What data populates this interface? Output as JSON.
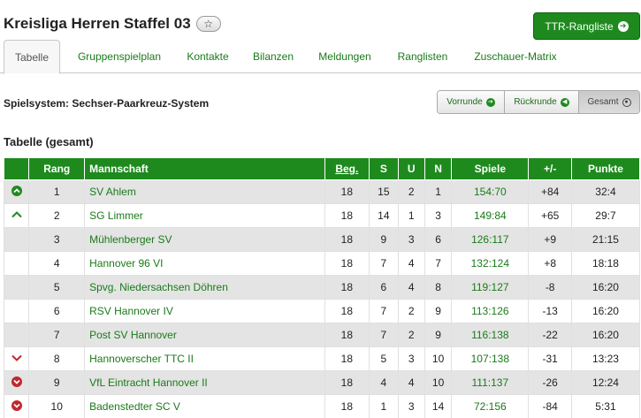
{
  "header": {
    "title": "Kreisliga Herren Staffel 03",
    "star_glyph": "☆",
    "ttr_button_label": "TTR-Rangliste"
  },
  "tabs": [
    {
      "label": "Tabelle",
      "active": true
    },
    {
      "label": "Gruppenspielplan",
      "active": false
    },
    {
      "label": "Kontakte",
      "active": false
    },
    {
      "label": "Bilanzen",
      "active": false
    },
    {
      "label": "Meldungen",
      "active": false
    },
    {
      "label": "Ranglisten",
      "active": false
    },
    {
      "label": "Zuschauer-Matrix",
      "active": false
    }
  ],
  "spielsystem": "Spielsystem: Sechser-Paarkreuz-System",
  "round_buttons": [
    {
      "label": "Vorrunde",
      "icon": "arrow-right-circle-icon",
      "active": false
    },
    {
      "label": "Rückrunde",
      "icon": "arrow-left-circle-icon",
      "active": false
    },
    {
      "label": "Gesamt",
      "icon": "target-circle-icon",
      "active": true
    }
  ],
  "section_title": "Tabelle (gesamt)",
  "table": {
    "headers": {
      "rang": "Rang",
      "mannschaft": "Mannschaft",
      "beg": "Beg.",
      "s": "S",
      "u": "U",
      "n": "N",
      "spiele": "Spiele",
      "diff": "+/-",
      "punkte": "Punkte"
    },
    "rows": [
      {
        "tendency": "up-circle",
        "rang": "1",
        "team": "SV Ahlem",
        "beg": "18",
        "s": "15",
        "u": "2",
        "n": "1",
        "spiele": "154:70",
        "diff": "+84",
        "punkte": "32:4"
      },
      {
        "tendency": "up-chevron",
        "rang": "2",
        "team": "SG Limmer",
        "beg": "18",
        "s": "14",
        "u": "1",
        "n": "3",
        "spiele": "149:84",
        "diff": "+65",
        "punkte": "29:7"
      },
      {
        "tendency": "",
        "rang": "3",
        "team": "Mühlenberger SV",
        "beg": "18",
        "s": "9",
        "u": "3",
        "n": "6",
        "spiele": "126:117",
        "diff": "+9",
        "punkte": "21:15"
      },
      {
        "tendency": "",
        "rang": "4",
        "team": "Hannover 96 VI",
        "beg": "18",
        "s": "7",
        "u": "4",
        "n": "7",
        "spiele": "132:124",
        "diff": "+8",
        "punkte": "18:18"
      },
      {
        "tendency": "",
        "rang": "5",
        "team": "Spvg. Niedersachsen Döhren",
        "beg": "18",
        "s": "6",
        "u": "4",
        "n": "8",
        "spiele": "119:127",
        "diff": "-8",
        "punkte": "16:20"
      },
      {
        "tendency": "",
        "rang": "6",
        "team": "RSV Hannover IV",
        "beg": "18",
        "s": "7",
        "u": "2",
        "n": "9",
        "spiele": "113:126",
        "diff": "-13",
        "punkte": "16:20"
      },
      {
        "tendency": "",
        "rang": "7",
        "team": "Post SV Hannover",
        "beg": "18",
        "s": "7",
        "u": "2",
        "n": "9",
        "spiele": "116:138",
        "diff": "-22",
        "punkte": "16:20"
      },
      {
        "tendency": "down-chevron",
        "rang": "8",
        "team": "Hannoverscher TTC II",
        "beg": "18",
        "s": "5",
        "u": "3",
        "n": "10",
        "spiele": "107:138",
        "diff": "-31",
        "punkte": "13:23"
      },
      {
        "tendency": "down-circle",
        "rang": "9",
        "team": "VfL Eintracht Hannover II",
        "beg": "18",
        "s": "4",
        "u": "4",
        "n": "10",
        "spiele": "111:137",
        "diff": "-26",
        "punkte": "12:24"
      },
      {
        "tendency": "down-circle",
        "rang": "10",
        "team": "Badenstedter SC V",
        "beg": "18",
        "s": "1",
        "u": "3",
        "n": "14",
        "spiele": "72:156",
        "diff": "-84",
        "punkte": "5:31"
      }
    ]
  },
  "colors": {
    "accent_green": "#1e8a1e",
    "link_green": "#1a7a1a",
    "down_red": "#c0282d"
  }
}
